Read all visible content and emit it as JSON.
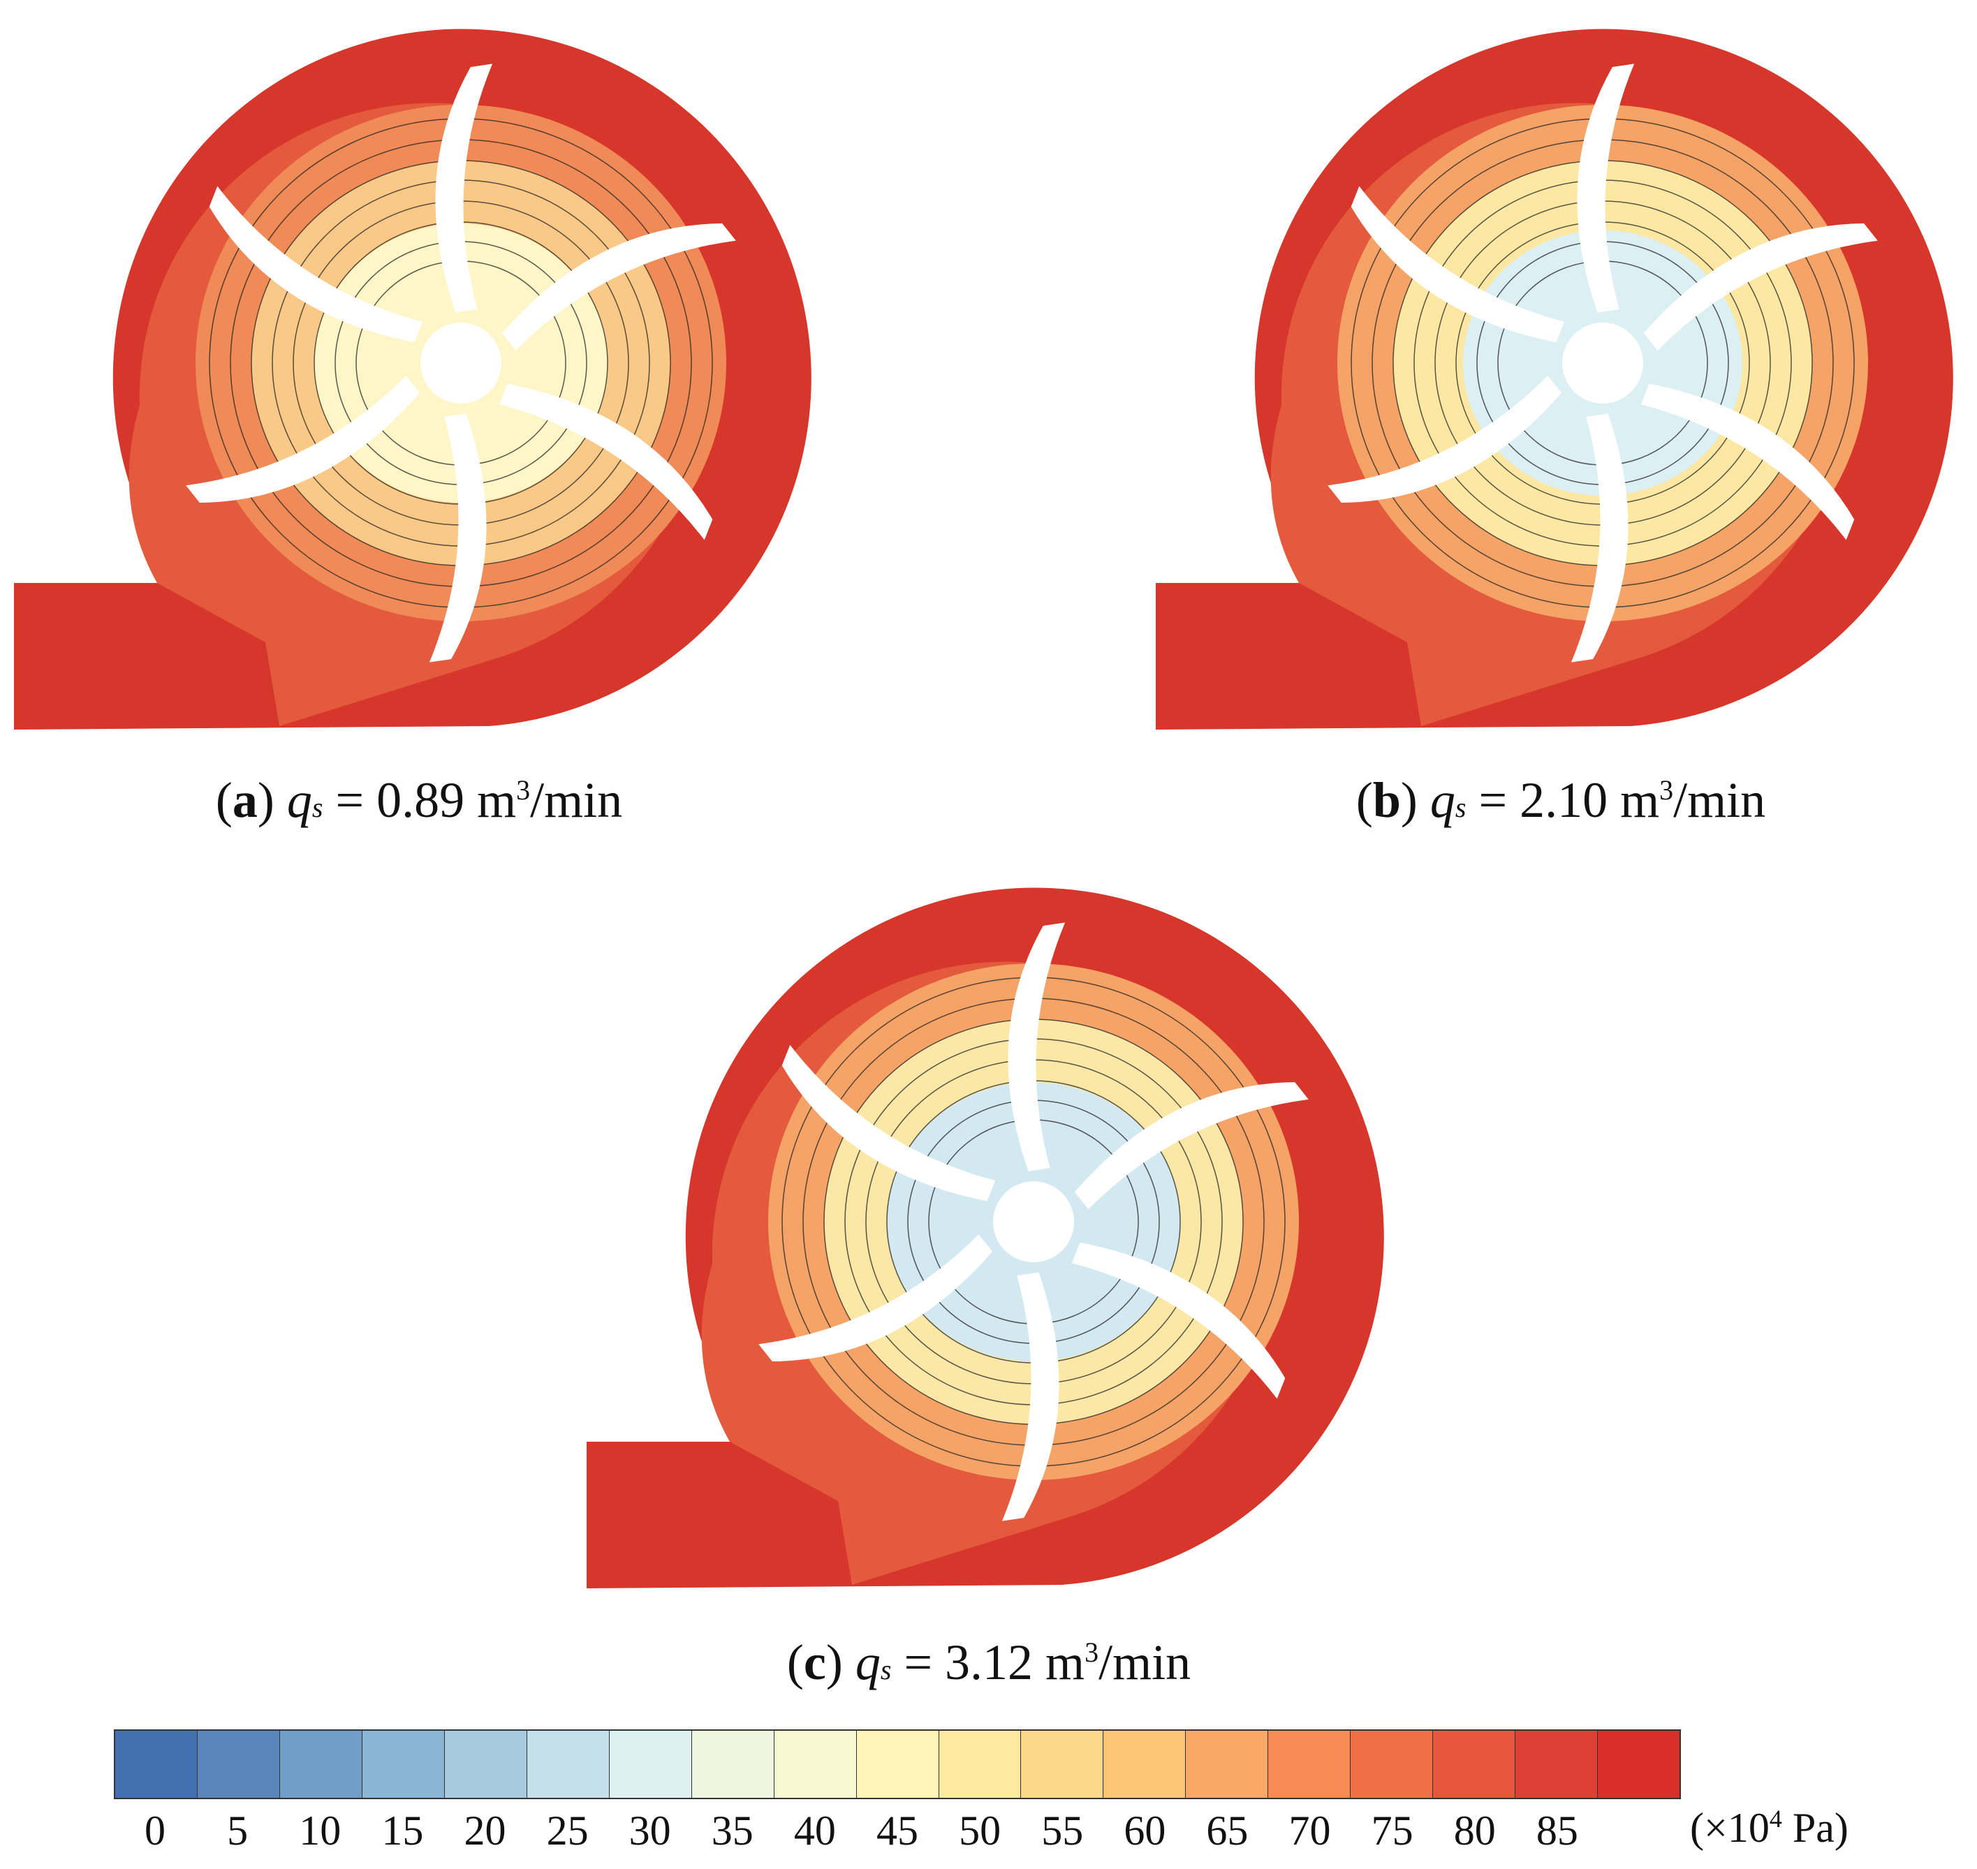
{
  "panels": [
    {
      "letter": "a",
      "q_symbol": "q",
      "q_sub": "s",
      "value": "0.89",
      "unit_prefix": "m",
      "unit_exp": "3",
      "unit_suffix": "/min",
      "colors": {
        "outer": "#d7362a",
        "ring": "#e45a3c",
        "mid": "#f08a56",
        "inner": "#fbc987",
        "center": "#fff6c8"
      }
    },
    {
      "letter": "b",
      "q_symbol": "q",
      "q_sub": "s",
      "value": "2.10",
      "unit_prefix": "m",
      "unit_exp": "3",
      "unit_suffix": "/min",
      "colors": {
        "outer": "#d7362a",
        "ring": "#e45a3c",
        "mid": "#f5a366",
        "inner": "#fde8a3",
        "center": "#dceff2"
      }
    },
    {
      "letter": "c",
      "q_symbol": "q",
      "q_sub": "s",
      "value": "3.12",
      "unit_prefix": "m",
      "unit_exp": "3",
      "unit_suffix": "/min",
      "colors": {
        "outer": "#d7362a",
        "ring": "#e45a3c",
        "mid": "#f5a366",
        "inner": "#fbe7a6",
        "center": "#d3e9f2"
      }
    }
  ],
  "colorbar": {
    "colors": [
      "#4470b0",
      "#5a86bb",
      "#719ec8",
      "#8ab4d4",
      "#a6cbe0",
      "#c3dfea",
      "#dff0f3",
      "#eef6e2",
      "#f8f9d0",
      "#fef6b6",
      "#fde9a0",
      "#fcd98a",
      "#fbc477",
      "#faa865",
      "#f78b54",
      "#f06f47",
      "#e7553c",
      "#dd4133",
      "#d7302b"
    ],
    "ticks": [
      "0",
      "5",
      "10",
      "15",
      "20",
      "25",
      "30",
      "35",
      "40",
      "45",
      "50",
      "55",
      "60",
      "65",
      "70",
      "75",
      "80",
      "85"
    ],
    "unit_prefix": "(×10",
    "unit_exp": "4",
    "unit_suffix": " Pa)"
  }
}
